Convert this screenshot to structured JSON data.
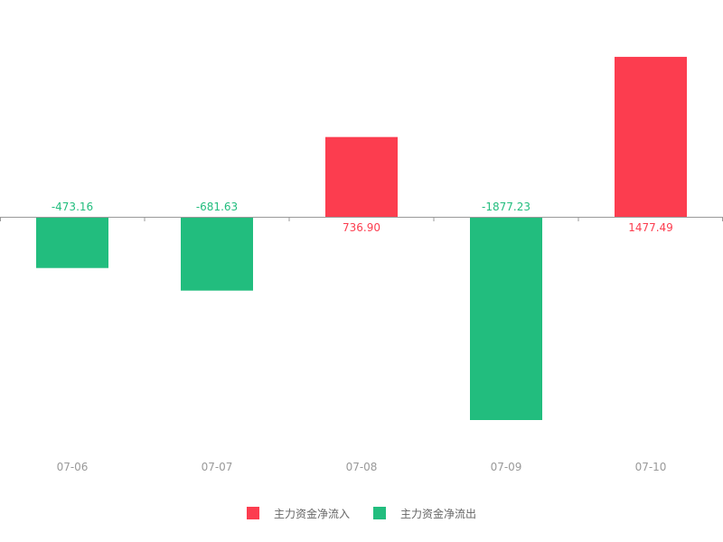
{
  "chart_data": {
    "type": "bar",
    "categories": [
      "07-06",
      "07-07",
      "07-08",
      "07-09",
      "07-10"
    ],
    "values": [
      -473.16,
      -681.63,
      736.9,
      -1877.23,
      1477.49
    ],
    "labels": [
      "-473.16",
      "-681.63",
      "736.90",
      "-1877.23",
      "1477.49"
    ],
    "ylim": [
      -2000,
      1500
    ],
    "grid": false,
    "legend_position": "bottom-center",
    "legend": [
      {
        "name": "主力资金净流入",
        "color": "#fc3d4f"
      },
      {
        "name": "主力资金净流出",
        "color": "#22bd7e"
      }
    ],
    "colors": {
      "inflow": "#fc3d4f",
      "outflow": "#22bd7e",
      "axis": "#999999",
      "tick_label": "#999999"
    }
  }
}
